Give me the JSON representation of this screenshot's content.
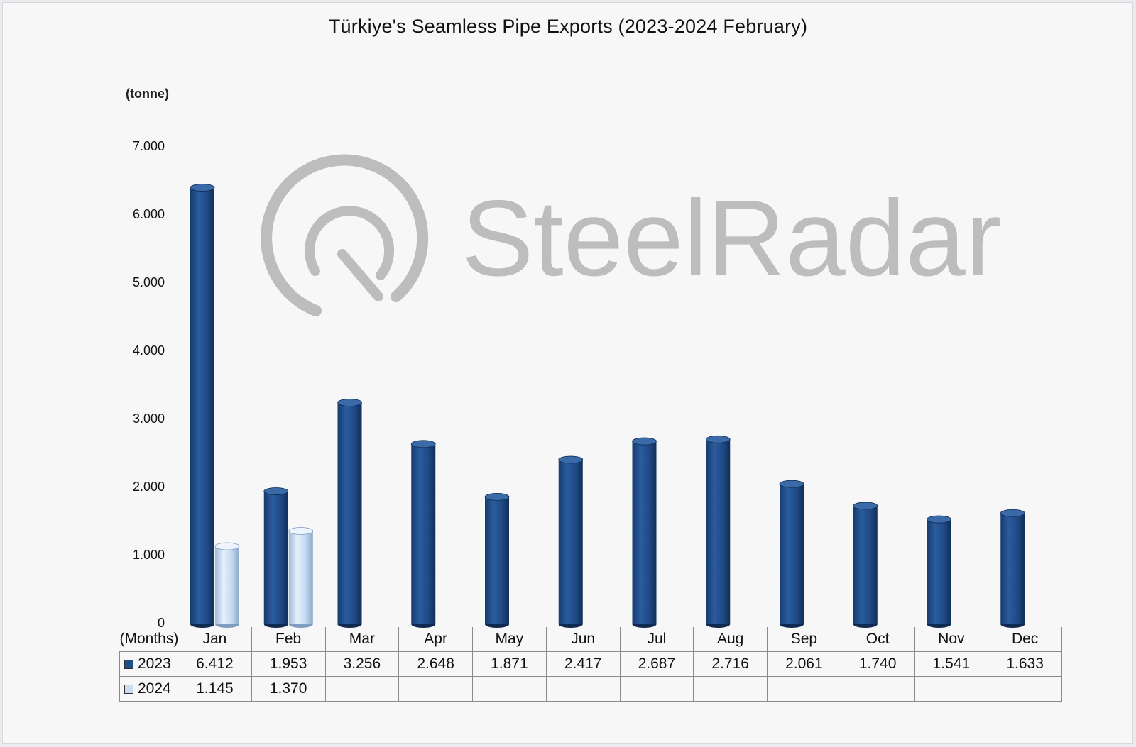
{
  "chart_data": {
    "type": "bar",
    "title": "Türkiye's Seamless Pipe Exports (2023-2024 February)",
    "ylabel": "(tonne)",
    "xlabel": "(Months)",
    "ylim": [
      0,
      7000
    ],
    "yticks": [
      0,
      1000,
      2000,
      3000,
      4000,
      5000,
      6000,
      7000
    ],
    "ytick_labels": [
      "0",
      "1.000",
      "2.000",
      "3.000",
      "4.000",
      "5.000",
      "6.000",
      "7.000"
    ],
    "categories": [
      "Jan",
      "Feb",
      "Mar",
      "Apr",
      "May",
      "Jun",
      "Jul",
      "Aug",
      "Sep",
      "Oct",
      "Nov",
      "Dec"
    ],
    "series": [
      {
        "name": "2023",
        "color": "#1f4e8c",
        "values": [
          6412,
          1953,
          3256,
          2648,
          1871,
          2417,
          2687,
          2716,
          2061,
          1740,
          1541,
          1633
        ],
        "labels": [
          "6.412",
          "1.953",
          "3.256",
          "2.648",
          "1.871",
          "2.417",
          "2.687",
          "2.716",
          "2.061",
          "1.740",
          "1.541",
          "1.633"
        ]
      },
      {
        "name": "2024",
        "color": "#c9dcf2",
        "values": [
          1145,
          1370,
          null,
          null,
          null,
          null,
          null,
          null,
          null,
          null,
          null,
          null
        ],
        "labels": [
          "1.145",
          "1.370",
          "",
          "",
          "",
          "",
          "",
          "",
          "",
          "",
          "",
          ""
        ]
      }
    ],
    "legend": "data-table",
    "grid": false
  },
  "watermark": {
    "text": "SteelRadar",
    "color": "#bdbdbd"
  }
}
